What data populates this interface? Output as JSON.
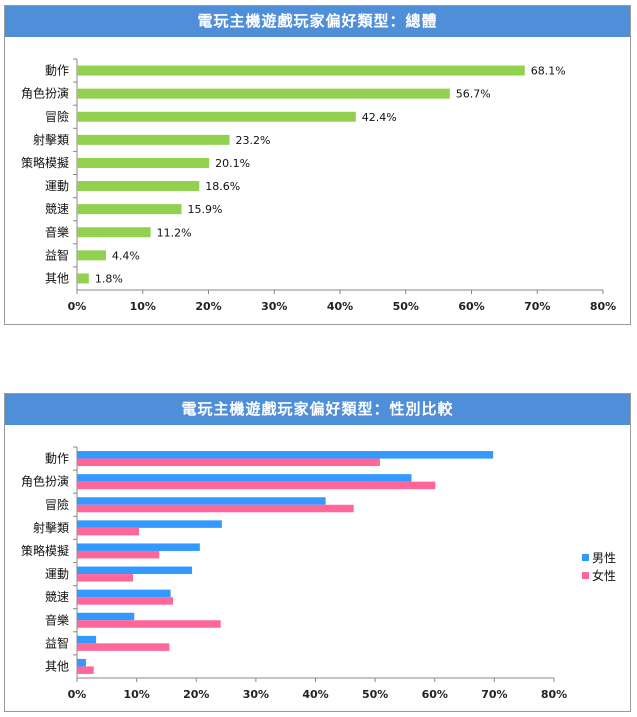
{
  "charts": [
    {
      "title": "電玩主機遊戲玩家偏好類型：總體",
      "type": "bar",
      "categories": [
        "動作",
        "角色扮演",
        "冒險",
        "射擊類",
        "策略模擬",
        "運動",
        "競速",
        "音樂",
        "益智",
        "其他"
      ],
      "x_ticks": [
        "0%",
        "10%",
        "20%",
        "30%",
        "40%",
        "50%",
        "60%",
        "70%",
        "80%"
      ],
      "xlim": [
        0,
        80
      ],
      "series": [
        {
          "values": [
            68.1,
            56.7,
            42.4,
            23.2,
            20.1,
            18.6,
            15.9,
            11.2,
            4.4,
            1.8
          ],
          "color": "#92d050"
        }
      ],
      "data_labels": [
        "68.1%",
        "56.7%",
        "42.4%",
        "23.2%",
        "20.1%",
        "18.6%",
        "15.9%",
        "11.2%",
        "4.4%",
        "1.8%"
      ],
      "legend": []
    },
    {
      "title": "電玩主機遊戲玩家偏好類型：性別比較",
      "type": "bar",
      "categories": [
        "動作",
        "角色扮演",
        "冒險",
        "射擊類",
        "策略模擬",
        "運動",
        "競速",
        "音樂",
        "益智",
        "其他"
      ],
      "x_ticks": [
        "0%",
        "10%",
        "20%",
        "30%",
        "40%",
        "50%",
        "60%",
        "70%",
        "80%"
      ],
      "xlim": [
        0,
        80
      ],
      "series": [
        {
          "name": "男性",
          "values": [
            69.8,
            56.1,
            41.7,
            24.3,
            20.6,
            19.3,
            15.7,
            9.6,
            3.2,
            1.5
          ],
          "color": "#3399ff"
        },
        {
          "name": "女性",
          "values": [
            50.8,
            60.1,
            46.4,
            10.4,
            13.8,
            9.4,
            16.1,
            24.1,
            15.5,
            2.8
          ],
          "color": "#ff6699"
        }
      ],
      "legend": [
        "男性",
        "女性"
      ],
      "legend_position": "right"
    }
  ]
}
